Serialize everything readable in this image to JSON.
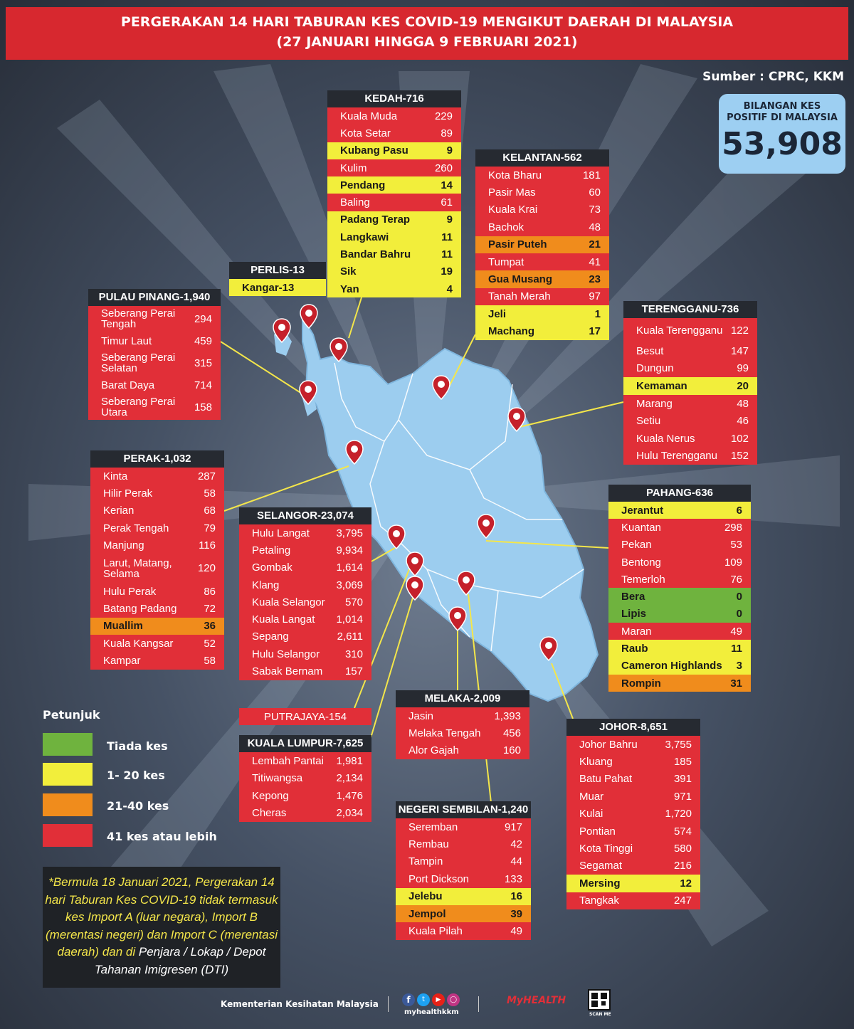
{
  "title_line1": "PERGERAKAN 14 HARI TABURAN KES COVID-19 MENGIKUT DAERAH DI MALAYSIA",
  "title_line2": "(27 JANUARI HINGGA 9 FEBRUARI 2021)",
  "source": "Sumber : CPRC, KKM",
  "total": {
    "label_line1": "BILANGAN KES",
    "label_line2": "POSITIF DI MALAYSIA",
    "value": "53,908"
  },
  "colors": {
    "green": "#6fb33e",
    "yellow": "#f2ee3b",
    "orange": "#f08c1c",
    "red": "#e12f38",
    "map": "#9ccdef"
  },
  "states": {
    "kedah": {
      "title": "KEDAH-716",
      "rows": [
        {
          "name": "Kuala Muda",
          "value": "229",
          "level": "r"
        },
        {
          "name": "Kota Setar",
          "value": "89",
          "level": "r"
        },
        {
          "name": "Kubang Pasu",
          "value": "9",
          "level": "y"
        },
        {
          "name": "Kulim",
          "value": "260",
          "level": "r"
        },
        {
          "name": "Pendang",
          "value": "14",
          "level": "y"
        },
        {
          "name": "Baling",
          "value": "61",
          "level": "r"
        },
        {
          "name": "Padang Terap",
          "value": "9",
          "level": "y"
        },
        {
          "name": "Langkawi",
          "value": "11",
          "level": "y"
        },
        {
          "name": "Bandar Bahru",
          "value": "11",
          "level": "y"
        },
        {
          "name": "Sik",
          "value": "19",
          "level": "y"
        },
        {
          "name": "Yan",
          "value": "4",
          "level": "y"
        }
      ]
    },
    "kelantan": {
      "title": "KELANTAN-562",
      "rows": [
        {
          "name": "Kota Bharu",
          "value": "181",
          "level": "r"
        },
        {
          "name": "Pasir Mas",
          "value": "60",
          "level": "r"
        },
        {
          "name": "Kuala Krai",
          "value": "73",
          "level": "r"
        },
        {
          "name": "Bachok",
          "value": "48",
          "level": "r"
        },
        {
          "name": "Pasir Puteh",
          "value": "21",
          "level": "o"
        },
        {
          "name": "Tumpat",
          "value": "41",
          "level": "r"
        },
        {
          "name": "Gua Musang",
          "value": "23",
          "level": "o"
        },
        {
          "name": "Tanah Merah",
          "value": "97",
          "level": "r"
        },
        {
          "name": "Jeli",
          "value": "1",
          "level": "y"
        },
        {
          "name": "Machang",
          "value": "17",
          "level": "y"
        }
      ]
    },
    "perlis": {
      "title": "PERLIS-13",
      "rows": [
        {
          "name": "Kangar-13",
          "value": "",
          "level": "y"
        }
      ]
    },
    "pinang": {
      "title": "PULAU PINANG-1,940",
      "rows": [
        {
          "name": "Seberang Perai Tengah",
          "value": "294",
          "level": "r"
        },
        {
          "name": "Timur Laut",
          "value": "459",
          "level": "r"
        },
        {
          "name": "Seberang Perai Selatan",
          "value": "315",
          "level": "r"
        },
        {
          "name": "Barat Daya",
          "value": "714",
          "level": "r"
        },
        {
          "name": "Seberang Perai Utara",
          "value": "158",
          "level": "r"
        }
      ]
    },
    "terengganu": {
      "title": "TERENGGANU-736",
      "rows": [
        {
          "name": "Kuala Terengganu",
          "value": "122",
          "level": "r"
        },
        {
          "name": "Besut",
          "value": "147",
          "level": "r"
        },
        {
          "name": "Dungun",
          "value": "99",
          "level": "r"
        },
        {
          "name": "Kemaman",
          "value": "20",
          "level": "y"
        },
        {
          "name": "Marang",
          "value": "48",
          "level": "r"
        },
        {
          "name": "Setiu",
          "value": "46",
          "level": "r"
        },
        {
          "name": "Kuala Nerus",
          "value": "102",
          "level": "r"
        },
        {
          "name": "Hulu Terengganu",
          "value": "152",
          "level": "r"
        }
      ]
    },
    "perak": {
      "title": "PERAK-1,032",
      "rows": [
        {
          "name": "Kinta",
          "value": "287",
          "level": "r"
        },
        {
          "name": "Hilir Perak",
          "value": "58",
          "level": "r"
        },
        {
          "name": "Kerian",
          "value": "68",
          "level": "r"
        },
        {
          "name": "Perak Tengah",
          "value": "79",
          "level": "r"
        },
        {
          "name": "Manjung",
          "value": "116",
          "level": "r"
        },
        {
          "name": "Larut, Matang, Selama",
          "value": "120",
          "level": "r"
        },
        {
          "name": "Hulu Perak",
          "value": "86",
          "level": "r"
        },
        {
          "name": "Batang Padang",
          "value": "72",
          "level": "r"
        },
        {
          "name": "Muallim",
          "value": "36",
          "level": "o"
        },
        {
          "name": "Kuala Kangsar",
          "value": "52",
          "level": "r"
        },
        {
          "name": "Kampar",
          "value": "58",
          "level": "r"
        }
      ]
    },
    "selangor": {
      "title": "SELANGOR-23,074",
      "rows": [
        {
          "name": "Hulu Langat",
          "value": "3,795",
          "level": "r"
        },
        {
          "name": "Petaling",
          "value": "9,934",
          "level": "r"
        },
        {
          "name": "Gombak",
          "value": "1,614",
          "level": "r"
        },
        {
          "name": "Klang",
          "value": "3,069",
          "level": "r"
        },
        {
          "name": "Kuala Selangor",
          "value": "570",
          "level": "r"
        },
        {
          "name": "Kuala Langat",
          "value": "1,014",
          "level": "r"
        },
        {
          "name": "Sepang",
          "value": "2,611",
          "level": "r"
        },
        {
          "name": "Hulu Selangor",
          "value": "310",
          "level": "r"
        },
        {
          "name": "Sabak Bernam",
          "value": "157",
          "level": "r"
        }
      ]
    },
    "pahang": {
      "title": "PAHANG-636",
      "rows": [
        {
          "name": "Jerantut",
          "value": "6",
          "level": "y"
        },
        {
          "name": "Kuantan",
          "value": "298",
          "level": "r"
        },
        {
          "name": "Pekan",
          "value": "53",
          "level": "r"
        },
        {
          "name": "Bentong",
          "value": "109",
          "level": "r"
        },
        {
          "name": "Temerloh",
          "value": "76",
          "level": "r"
        },
        {
          "name": "Bera",
          "value": "0",
          "level": "g"
        },
        {
          "name": "Lipis",
          "value": "0",
          "level": "g"
        },
        {
          "name": "Maran",
          "value": "49",
          "level": "r"
        },
        {
          "name": "Raub",
          "value": "11",
          "level": "y"
        },
        {
          "name": "Cameron Highlands",
          "value": "3",
          "level": "y"
        },
        {
          "name": "Rompin",
          "value": "31",
          "level": "o"
        }
      ]
    },
    "putrajaya": {
      "title": "PUTRAJAYA-154"
    },
    "kl": {
      "title": "KUALA LUMPUR-7,625",
      "rows": [
        {
          "name": "Lembah Pantai",
          "value": "1,981",
          "level": "r"
        },
        {
          "name": "Titiwangsa",
          "value": "2,134",
          "level": "r"
        },
        {
          "name": "Kepong",
          "value": "1,476",
          "level": "r"
        },
        {
          "name": "Cheras",
          "value": "2,034",
          "level": "r"
        }
      ]
    },
    "melaka": {
      "title": "MELAKA-2,009",
      "rows": [
        {
          "name": "Jasin",
          "value": "1,393",
          "level": "r"
        },
        {
          "name": "Melaka Tengah",
          "value": "456",
          "level": "r"
        },
        {
          "name": "Alor Gajah",
          "value": "160",
          "level": "r"
        }
      ]
    },
    "johor": {
      "title": "JOHOR-8,651",
      "rows": [
        {
          "name": "Johor Bahru",
          "value": "3,755",
          "level": "r"
        },
        {
          "name": "Kluang",
          "value": "185",
          "level": "r"
        },
        {
          "name": "Batu Pahat",
          "value": "391",
          "level": "r"
        },
        {
          "name": "Muar",
          "value": "971",
          "level": "r"
        },
        {
          "name": "Kulai",
          "value": "1,720",
          "level": "r"
        },
        {
          "name": "Pontian",
          "value": "574",
          "level": "r"
        },
        {
          "name": "Kota Tinggi",
          "value": "580",
          "level": "r"
        },
        {
          "name": "Segamat",
          "value": "216",
          "level": "r"
        },
        {
          "name": "Mersing",
          "value": "12",
          "level": "y"
        },
        {
          "name": "Tangkak",
          "value": "247",
          "level": "r"
        }
      ]
    },
    "ns": {
      "title": "NEGERI SEMBILAN-1,240",
      "rows": [
        {
          "name": "Seremban",
          "value": "917",
          "level": "r"
        },
        {
          "name": "Rembau",
          "value": "42",
          "level": "r"
        },
        {
          "name": "Tampin",
          "value": "44",
          "level": "r"
        },
        {
          "name": "Port Dickson",
          "value": "133",
          "level": "r"
        },
        {
          "name": "Jelebu",
          "value": "16",
          "level": "y"
        },
        {
          "name": "Jempol",
          "value": "39",
          "level": "o"
        },
        {
          "name": "Kuala Pilah",
          "value": "49",
          "level": "r"
        }
      ]
    }
  },
  "legend": {
    "title": "Petunjuk",
    "items": [
      "Tiada kes",
      "1- 20 kes",
      "21-40 kes",
      "41 kes atau lebih"
    ]
  },
  "note": {
    "part1": "*Bermula 18 Januari 2021, Pergerakan 14 hari Taburan Kes COVID-19 tidak termasuk kes Import A (luar negara), Import B (merentasi negeri) dan Import C (merentasi daerah) dan di",
    "part2": " Penjara / Lokap / Depot Tahanan Imigresen (DTI)"
  },
  "footer": {
    "ministry": "Kementerian Kesihatan Malaysia",
    "social_handle": "myhealthkkm",
    "brand": "MyHEALTH",
    "scan": "SCAN ME"
  }
}
